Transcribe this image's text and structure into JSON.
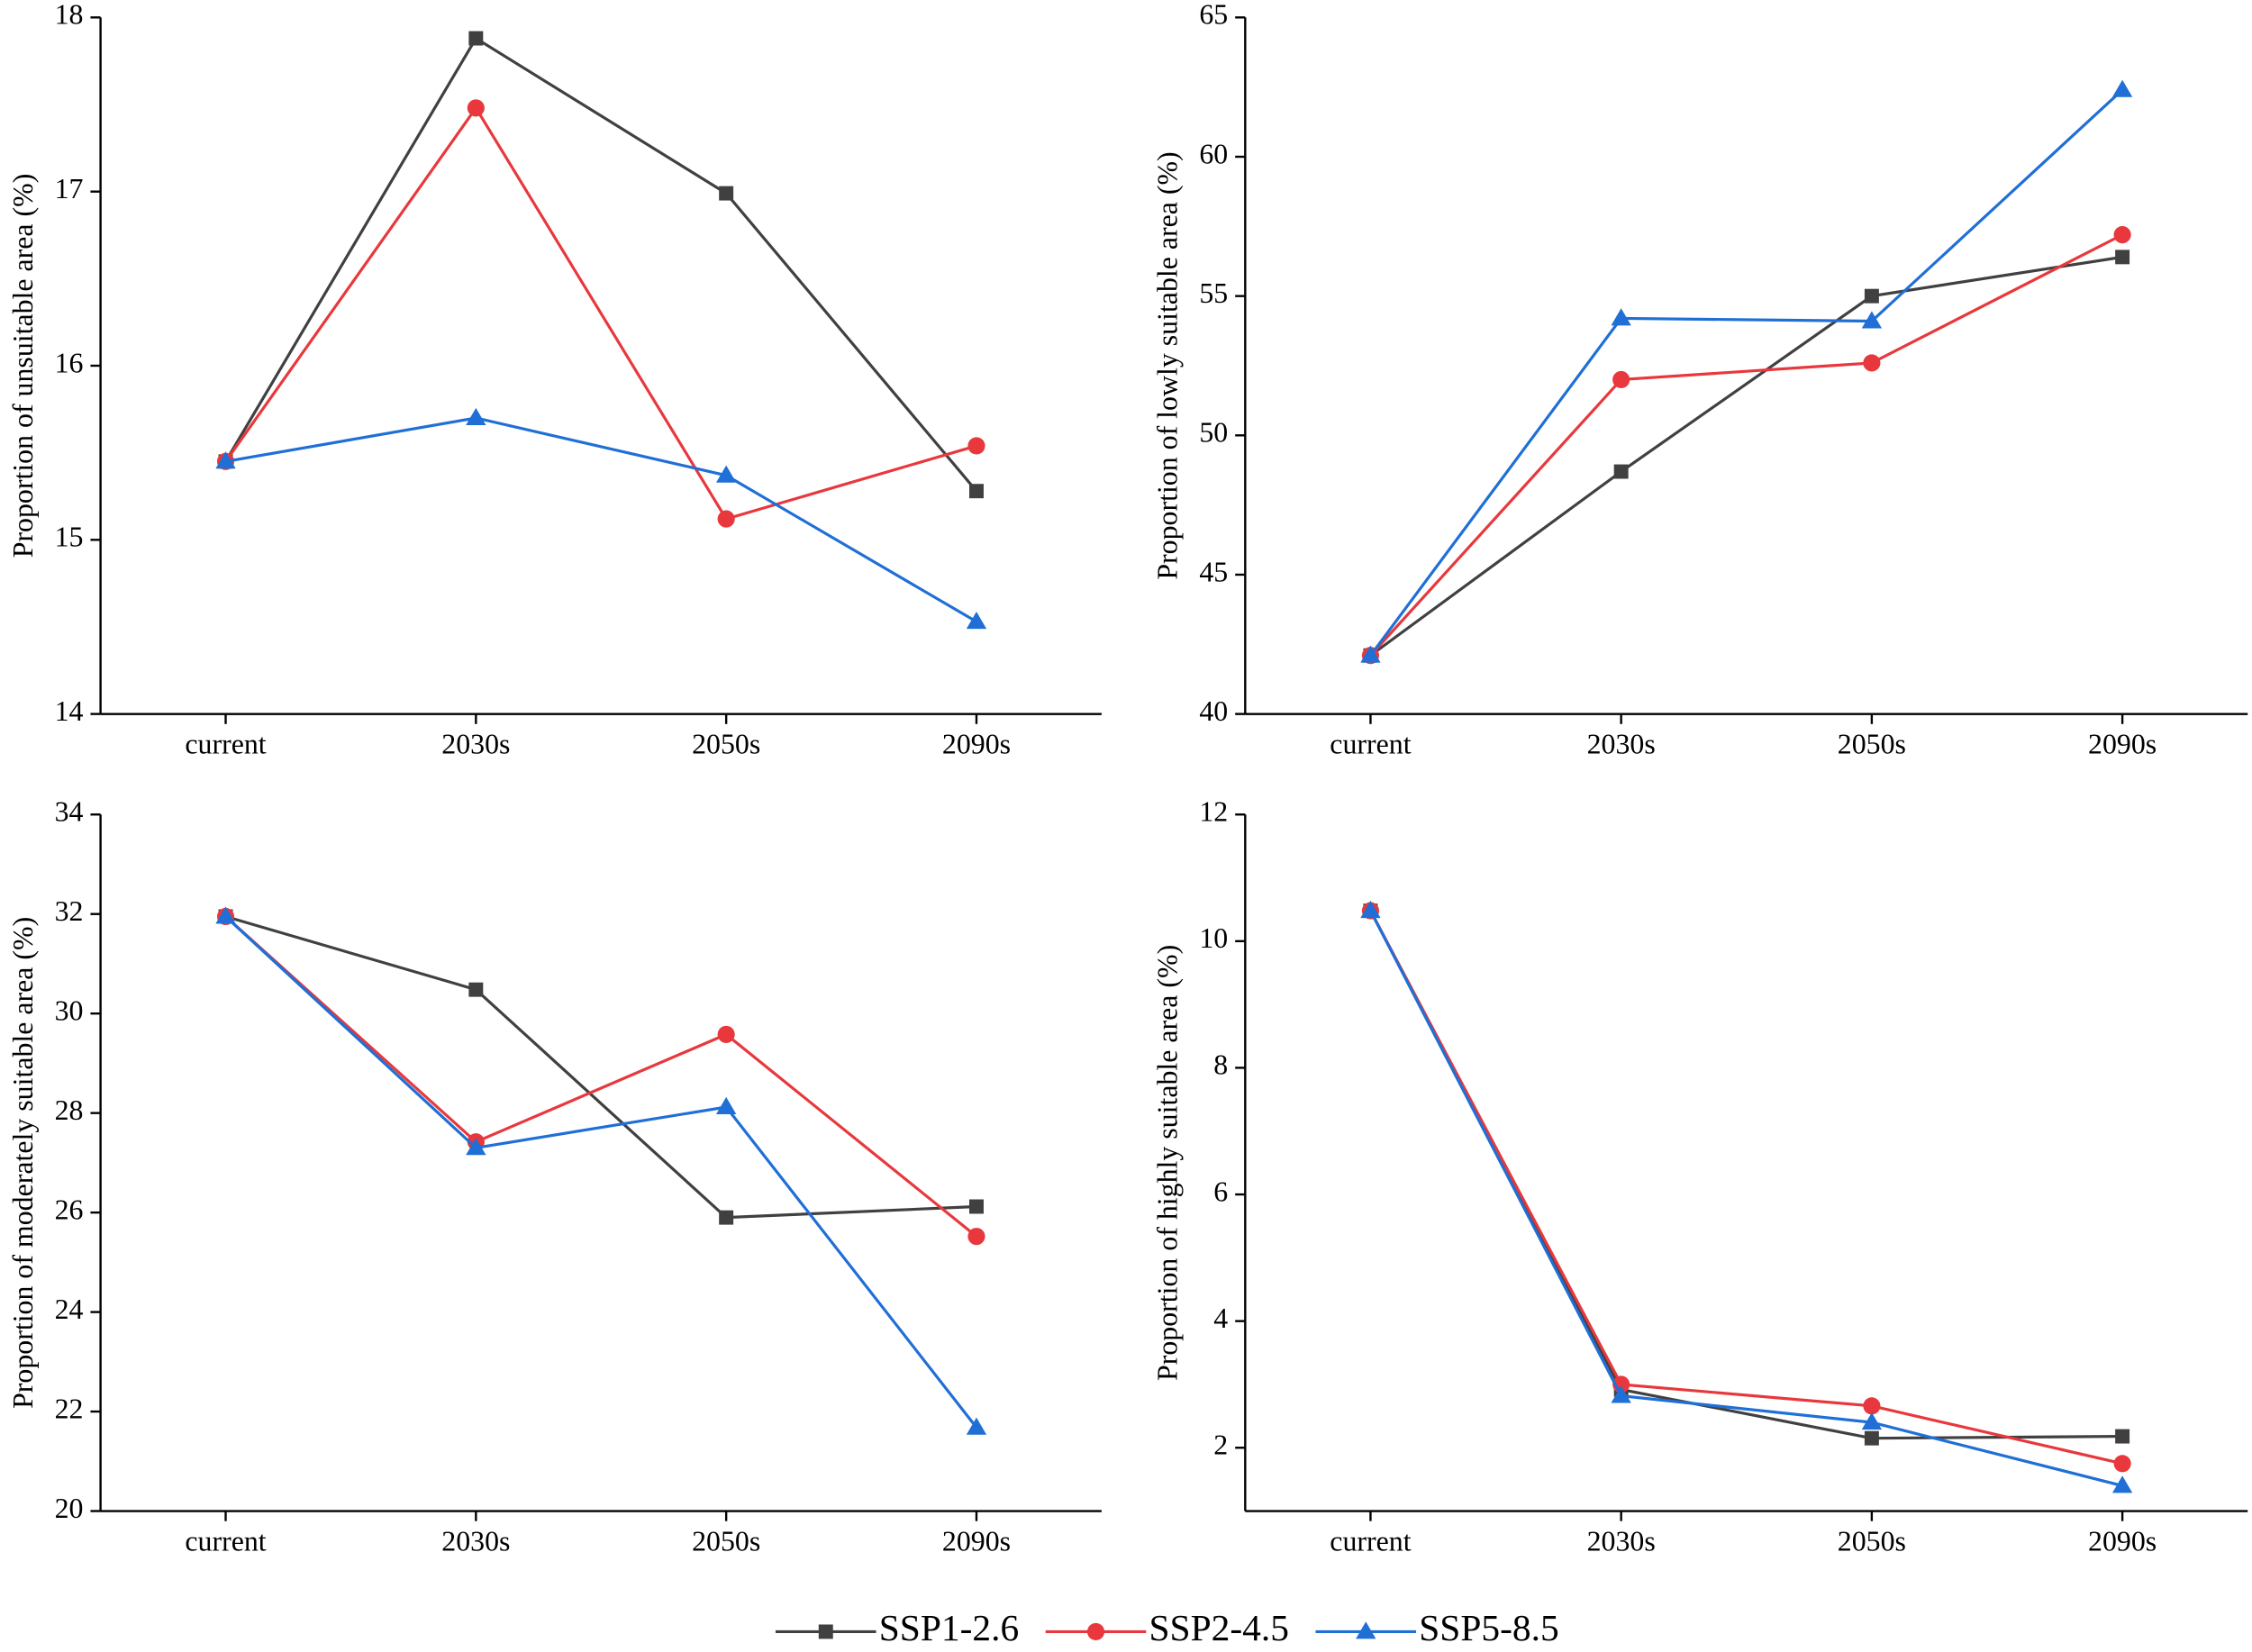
{
  "chart_data": [
    {
      "type": "line",
      "ylabel": "Proportion of unsuitable area (%)",
      "categories": [
        "current",
        "2030s",
        "2050s",
        "2090s"
      ],
      "ylim": [
        14,
        18
      ],
      "yticks": [
        14,
        15,
        16,
        17,
        18
      ],
      "series": [
        {
          "name": "SSP1-2.6",
          "color": "#404040",
          "marker": "square",
          "values": [
            15.45,
            17.88,
            16.99,
            15.28
          ]
        },
        {
          "name": "SSP2-4.5",
          "color": "#e8383d",
          "marker": "circle",
          "values": [
            15.45,
            17.48,
            15.12,
            15.54
          ]
        },
        {
          "name": "SSP5-8.5",
          "color": "#1f6fd6",
          "marker": "triangle",
          "values": [
            15.45,
            15.7,
            15.37,
            14.53
          ]
        }
      ]
    },
    {
      "type": "line",
      "ylabel": "Proportion of lowly suitable area (%)",
      "categories": [
        "current",
        "2030s",
        "2050s",
        "2090s"
      ],
      "ylim": [
        40,
        65
      ],
      "yticks": [
        40,
        45,
        50,
        55,
        60,
        65
      ],
      "series": [
        {
          "color": "#404040",
          "marker": "square",
          "values": [
            42.1,
            48.7,
            55.0,
            56.4
          ]
        },
        {
          "color": "#e8383d",
          "marker": "circle",
          "values": [
            42.1,
            52.0,
            52.6,
            57.2
          ]
        },
        {
          "color": "#1f6fd6",
          "marker": "triangle",
          "values": [
            42.1,
            54.2,
            54.1,
            62.4
          ]
        }
      ]
    },
    {
      "type": "line",
      "ylabel": "Proportion of moderately suitable area (%)",
      "categories": [
        "current",
        "2030s",
        "2050s",
        "2090s"
      ],
      "ylim": [
        20,
        34
      ],
      "yticks": [
        20,
        22,
        24,
        26,
        28,
        30,
        32,
        34
      ],
      "series": [
        {
          "color": "#404040",
          "marker": "square",
          "values": [
            31.95,
            30.48,
            25.9,
            26.12
          ]
        },
        {
          "color": "#e8383d",
          "marker": "circle",
          "values": [
            31.95,
            27.42,
            29.58,
            25.52
          ]
        },
        {
          "color": "#1f6fd6",
          "marker": "triangle",
          "values": [
            31.95,
            27.3,
            28.12,
            21.68
          ]
        }
      ]
    },
    {
      "type": "line",
      "ylabel": "Proportion of highly suitable area (%)",
      "categories": [
        "current",
        "2030s",
        "2050s",
        "2090s"
      ],
      "ylim": [
        1,
        12
      ],
      "yticks": [
        2,
        4,
        6,
        8,
        10,
        12
      ],
      "series": [
        {
          "color": "#404040",
          "marker": "square",
          "values": [
            10.48,
            2.92,
            2.15,
            2.18
          ]
        },
        {
          "color": "#e8383d",
          "marker": "circle",
          "values": [
            10.48,
            3.0,
            2.66,
            1.75
          ]
        },
        {
          "color": "#1f6fd6",
          "marker": "triangle",
          "values": [
            10.48,
            2.82,
            2.4,
            1.4
          ]
        }
      ]
    }
  ]
}
